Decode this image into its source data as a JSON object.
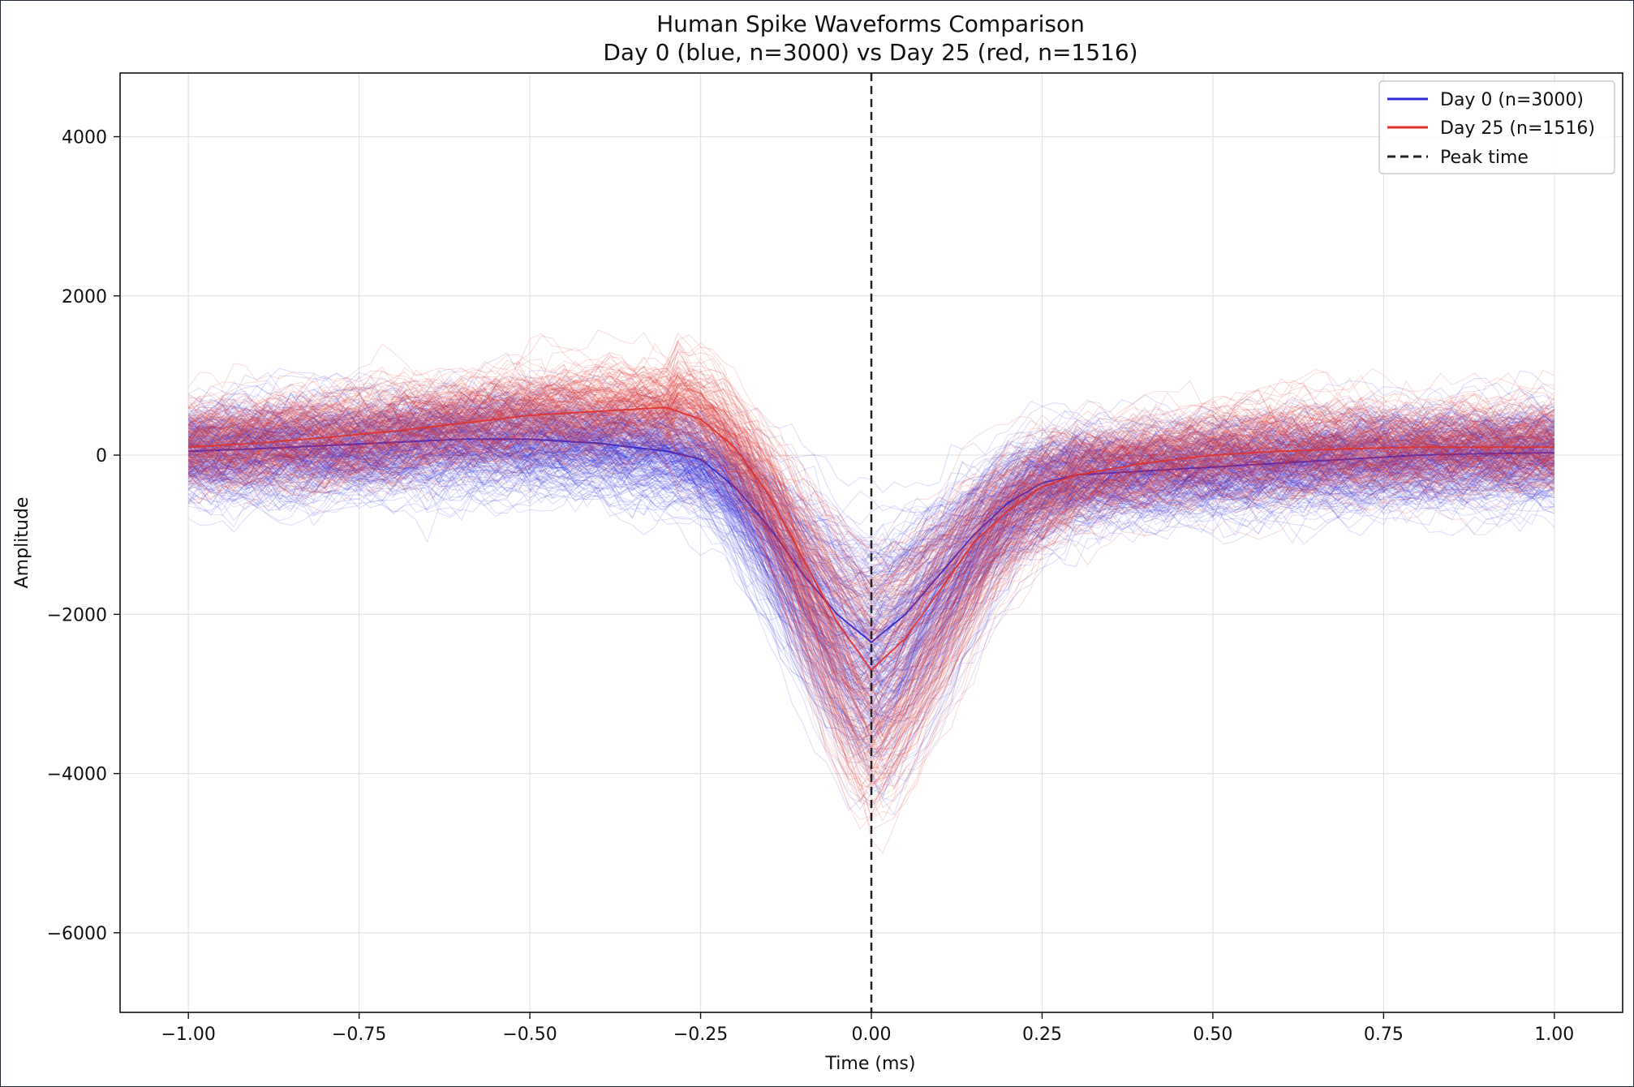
{
  "chart_data": {
    "type": "line",
    "title": "Human Spike Waveforms Comparison",
    "subtitle": "Day 0 (blue, n=3000) vs Day 25 (red, n=1516)",
    "xlabel": "Time (ms)",
    "ylabel": "Amplitude",
    "xlim": [
      -1.1,
      1.1
    ],
    "ylim": [
      -7000,
      4800
    ],
    "x_ticks": [
      -1.0,
      -0.75,
      -0.5,
      -0.25,
      0.0,
      0.25,
      0.5,
      0.75,
      1.0
    ],
    "x_tick_labels": [
      "−1.00",
      "−0.75",
      "−0.50",
      "−0.25",
      "0.00",
      "0.25",
      "0.50",
      "0.75",
      "1.00"
    ],
    "y_ticks": [
      4000,
      2000,
      0,
      -2000,
      -4000,
      -6000
    ],
    "y_tick_labels": [
      "4000",
      "2000",
      "0",
      "−2000",
      "−4000",
      "−6000"
    ],
    "grid": true,
    "legend_position": "top-right",
    "peak_time": 0.0,
    "legend": [
      {
        "label": "Day 0 (n=3000)",
        "color": "#2b2bd6",
        "style": "solid"
      },
      {
        "label": "Day 25 (n=1516)",
        "color": "#e0302a",
        "style": "solid"
      },
      {
        "label": "Peak time",
        "color": "#222222",
        "style": "dashed"
      }
    ],
    "series": [
      {
        "name": "Day 0 (n=3000)",
        "color": "#2222dd",
        "x": [
          -1.0,
          -0.9,
          -0.8,
          -0.7,
          -0.6,
          -0.5,
          -0.4,
          -0.3,
          -0.25,
          -0.2,
          -0.15,
          -0.1,
          -0.05,
          0.0,
          0.05,
          0.1,
          0.15,
          0.2,
          0.25,
          0.3,
          0.4,
          0.5,
          0.6,
          0.7,
          0.8,
          0.9,
          1.0
        ],
        "values": [
          50,
          80,
          120,
          160,
          200,
          200,
          150,
          50,
          -50,
          -400,
          -900,
          -1500,
          -2000,
          -2350,
          -2000,
          -1500,
          -1000,
          -600,
          -350,
          -250,
          -200,
          -150,
          -100,
          -50,
          0,
          20,
          30
        ]
      },
      {
        "name": "Day 25 (n=1516)",
        "color": "#e0302a",
        "x": [
          -1.0,
          -0.9,
          -0.8,
          -0.7,
          -0.6,
          -0.5,
          -0.4,
          -0.3,
          -0.25,
          -0.2,
          -0.15,
          -0.1,
          -0.05,
          0.0,
          0.05,
          0.1,
          0.15,
          0.2,
          0.25,
          0.3,
          0.4,
          0.5,
          0.6,
          0.7,
          0.8,
          0.9,
          1.0
        ],
        "values": [
          100,
          150,
          220,
          300,
          400,
          500,
          550,
          600,
          450,
          100,
          -500,
          -1300,
          -2100,
          -2700,
          -2300,
          -1700,
          -1100,
          -700,
          -400,
          -250,
          -100,
          0,
          50,
          80,
          100,
          100,
          100
        ]
      }
    ]
  }
}
